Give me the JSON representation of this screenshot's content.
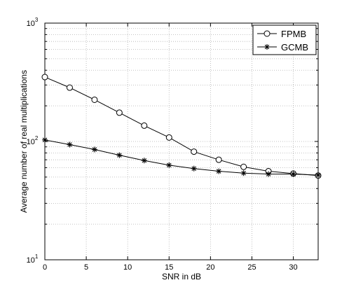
{
  "chart_data": {
    "type": "line",
    "xlabel": "SNR in dB",
    "ylabel": "Average number of real multiplications",
    "xlim": [
      0,
      33
    ],
    "ylim": [
      10,
      1000
    ],
    "yscale": "log",
    "xticks": [
      0,
      5,
      10,
      15,
      20,
      25,
      30
    ],
    "ytick_labels": [
      {
        "base": "10",
        "exp": "1"
      },
      {
        "base": "10",
        "exp": "2"
      },
      {
        "base": "10",
        "exp": "3"
      }
    ],
    "grid": true,
    "legend_position": "top-right",
    "x": [
      0,
      3,
      6,
      9,
      12,
      15,
      18,
      21,
      24,
      27,
      30,
      33
    ],
    "series": [
      {
        "name": "FPMB",
        "marker": "circle",
        "values": [
          350,
          285,
          225,
          175,
          136,
          108,
          82,
          70,
          61,
          56,
          53.5,
          51.5
        ]
      },
      {
        "name": "GCMB",
        "marker": "star",
        "values": [
          103,
          94,
          85.5,
          76.5,
          69,
          63,
          59,
          56,
          54,
          53,
          53,
          52
        ]
      }
    ]
  }
}
